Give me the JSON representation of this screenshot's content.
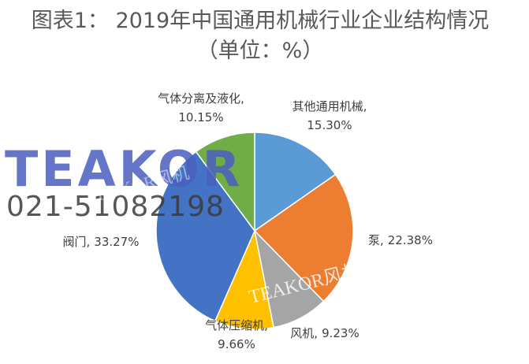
{
  "chart_data": {
    "type": "pie",
    "title": "图表1： 2019年中国通用机械行业企业结构情况（单位：%）",
    "categories": [
      "其他通用机械,",
      "泵,",
      "风机,",
      "气体压缩机,",
      "阀门,",
      "气体分离及液化,"
    ],
    "values": [
      15.3,
      22.38,
      9.23,
      9.66,
      33.27,
      10.15
    ],
    "value_labels": [
      "15.30%",
      "22.38%",
      "9.23%",
      "9.66%",
      "33.27%",
      "10.15%"
    ],
    "colors": [
      "#5b9bd5",
      "#ed7d31",
      "#a5a5a5",
      "#ffc000",
      "#4472c4",
      "#70ad47"
    ],
    "watermarks": [
      "TEAKOR",
      "021-51082198",
      "TEAKOR风机",
      "TEAKOR风机"
    ]
  }
}
